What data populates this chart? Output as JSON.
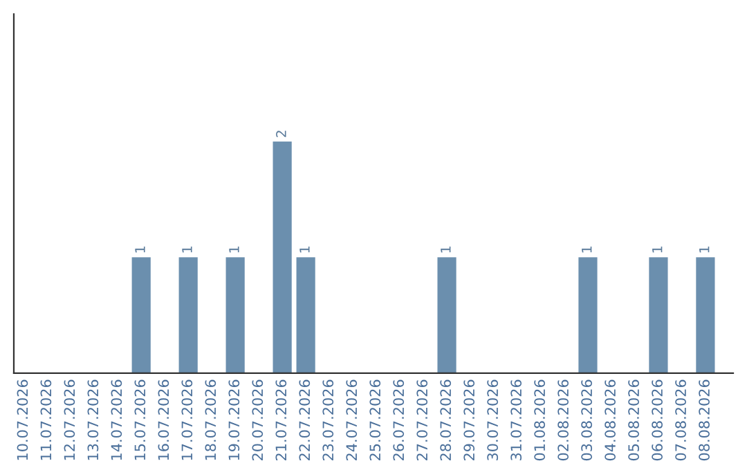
{
  "chart_data": {
    "type": "bar",
    "categories": [
      "10.07.2026",
      "11.07.2026",
      "12.07.2026",
      "13.07.2026",
      "14.07.2026",
      "15.07.2026",
      "16.07.2026",
      "17.07.2026",
      "18.07.2026",
      "19.07.2026",
      "20.07.2026",
      "21.07.2026",
      "22.07.2026",
      "23.07.2026",
      "24.07.2026",
      "25.07.2026",
      "26.07.2026",
      "27.07.2026",
      "28.07.2026",
      "29.07.2026",
      "30.07.2026",
      "31.07.2026",
      "01.08.2026",
      "02.08.2026",
      "03.08.2026",
      "04.08.2026",
      "05.08.2026",
      "06.08.2026",
      "07.08.2026",
      "08.08.2026"
    ],
    "values": [
      0,
      0,
      0,
      0,
      0,
      1,
      0,
      1,
      0,
      1,
      0,
      2,
      1,
      0,
      0,
      0,
      0,
      0,
      1,
      0,
      0,
      0,
      0,
      0,
      1,
      0,
      0,
      1,
      0,
      1
    ],
    "value_labels": [
      null,
      null,
      null,
      null,
      null,
      "1",
      null,
      "1",
      null,
      "1",
      null,
      "2",
      "1",
      null,
      null,
      null,
      null,
      null,
      "1",
      null,
      null,
      null,
      null,
      null,
      "1",
      null,
      null,
      "1",
      null,
      "1"
    ],
    "color": "#6b8fae",
    "ylim": [
      0,
      3.1
    ],
    "tick_labels": "x",
    "grid": false,
    "legend": false
  }
}
